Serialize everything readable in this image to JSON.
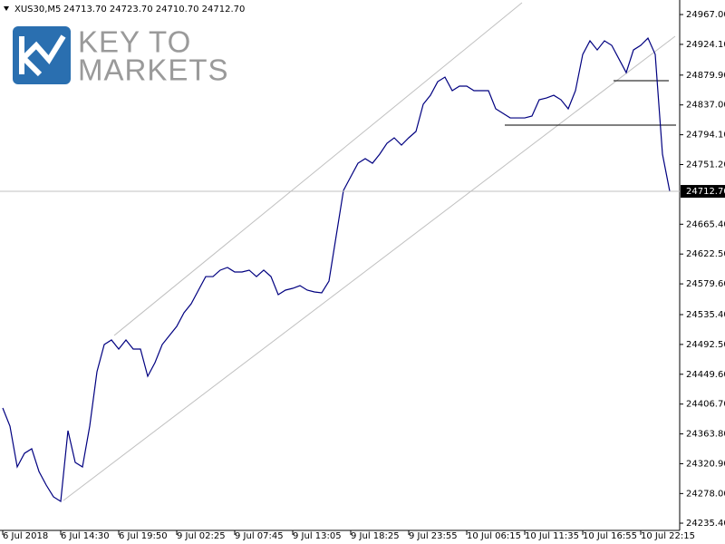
{
  "header": {
    "symbol": "XUS30,M5",
    "ohlc": "24713.70 24723.70 24710.70 24712.70"
  },
  "logo": {
    "line1": "KEY TO",
    "line2": "MARKETS"
  },
  "chart_data": {
    "type": "line",
    "categories": [
      "6 Jul 2018",
      null,
      null,
      null,
      null,
      null,
      null,
      null,
      "6 Jul 14:30",
      null,
      null,
      null,
      null,
      null,
      null,
      null,
      "6 Jul 19:50",
      null,
      null,
      null,
      null,
      null,
      null,
      null,
      "9 Jul 02:25",
      null,
      null,
      null,
      null,
      null,
      null,
      null,
      "9 Jul 07:45",
      null,
      null,
      null,
      null,
      null,
      null,
      null,
      "9 Jul 13:05",
      null,
      null,
      null,
      null,
      null,
      null,
      null,
      "9 Jul 18:25",
      null,
      null,
      null,
      null,
      null,
      null,
      null,
      "9 Jul 23:55",
      null,
      null,
      null,
      null,
      null,
      null,
      null,
      "10 Jul 06:15",
      null,
      null,
      null,
      null,
      null,
      null,
      null,
      "10 Jul 11:35",
      null,
      null,
      null,
      null,
      null,
      null,
      null,
      "10 Jul 16:55",
      null,
      null,
      null,
      null,
      null,
      null,
      null,
      "10 Jul 22:15",
      null,
      null,
      null,
      null
    ],
    "series": [
      {
        "name": "XUS30,M5",
        "color": "#000080",
        "values": [
          24401.1,
          24375.0,
          24316.3,
          24335.9,
          24342.4,
          24309.8,
          24290.2,
          24273.3,
          24266.8,
          24368.5,
          24322.8,
          24316.3,
          24375.0,
          24453.2,
          24492.3,
          24498.9,
          24485.8,
          24498.9,
          24485.8,
          24485.8,
          24446.7,
          24466.3,
          24492.3,
          24505.4,
          24518.4,
          24538.0,
          24551.0,
          24570.6,
          24590.1,
          24590.1,
          24599.3,
          24603.2,
          24596.7,
          24596.7,
          24599.3,
          24590.1,
          24599.3,
          24590.1,
          24564.1,
          24570.6,
          24573.2,
          24577.1,
          24570.6,
          24568.0,
          24566.7,
          24583.6,
          24648.8,
          24714.0,
          24733.6,
          24753.1,
          24759.7,
          24753.1,
          24766.2,
          24781.8,
          24789.7,
          24779.2,
          24789.7,
          24798.8,
          24837.9,
          24850.9,
          24870.5,
          24877.0,
          24857.5,
          24864.0,
          24864.0,
          24857.5,
          24857.5,
          24857.5,
          24831.4,
          24824.9,
          24818.3,
          24818.3,
          24818.3,
          24821.0,
          24844.4,
          24847.0,
          24850.9,
          24844.4,
          24831.4,
          24857.5,
          24909.6,
          24929.2,
          24916.1,
          24929.2,
          24922.7,
          24903.1,
          24883.5,
          24916.1,
          24922.7,
          24933.1,
          24909.6,
          24766.2,
          24712.7
        ]
      }
    ],
    "ylim": [
      24225,
      24984
    ],
    "yticks": [
      {
        "value": 24967.0,
        "label": "24967.00"
      },
      {
        "value": 24924.1,
        "label": "24924.10"
      },
      {
        "value": 24879.9,
        "label": "24879.90"
      },
      {
        "value": 24837.0,
        "label": "24837.00"
      },
      {
        "value": 24794.1,
        "label": "24794.10"
      },
      {
        "value": 24751.2,
        "label": "24751.20"
      },
      {
        "value": 24665.4,
        "label": "24665.40"
      },
      {
        "value": 24622.5,
        "label": "24622.50"
      },
      {
        "value": 24579.6,
        "label": "24579.60"
      },
      {
        "value": 24535.4,
        "label": "24535.40"
      },
      {
        "value": 24492.5,
        "label": "24492.50"
      },
      {
        "value": 24449.6,
        "label": "24449.60"
      },
      {
        "value": 24406.7,
        "label": "24406.70"
      },
      {
        "value": 24363.8,
        "label": "24363.80"
      },
      {
        "value": 24320.9,
        "label": "24320.90"
      },
      {
        "value": 24278.0,
        "label": "24278.00"
      },
      {
        "value": 24235.4,
        "label": "24235.40"
      }
    ],
    "last_price": {
      "value": 24712.7,
      "label": "24712.70"
    }
  }
}
